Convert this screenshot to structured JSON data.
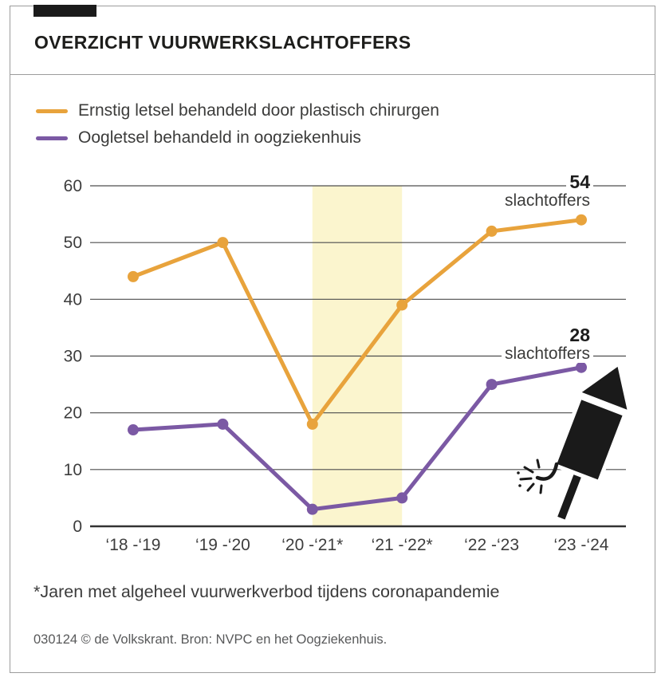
{
  "header": {
    "title": "OVERZICHT VUURWERKSLACHTOFFERS"
  },
  "legend": [
    {
      "label": "Ernstig letsel behandeld door plastisch chirurgen",
      "color": "#E8A33C"
    },
    {
      "label": "Oogletsel behandeld in oogziekenhuis",
      "color": "#7B59A4"
    }
  ],
  "chart_data": {
    "type": "line",
    "categories": [
      "‘18 -‘19",
      "‘19 -‘20",
      "‘20 -‘21*",
      "‘21 -‘22*",
      "‘22 -‘23",
      "‘23 -‘24"
    ],
    "series": [
      {
        "name": "Ernstig letsel behandeld door plastisch chirurgen",
        "color": "#E8A33C",
        "values": [
          44,
          50,
          18,
          39,
          52,
          54
        ]
      },
      {
        "name": "Oogletsel behandeld in oogziekenhuis",
        "color": "#7B59A4",
        "values": [
          17,
          18,
          3,
          5,
          25,
          28
        ]
      }
    ],
    "ylim": [
      0,
      60
    ],
    "yticks": [
      0,
      10,
      20,
      30,
      40,
      50,
      60
    ],
    "grid": true,
    "legend_position": "top-left",
    "highlight_band": {
      "from_category_index": 2,
      "to_category_index": 3,
      "color": "#FBF5CE"
    },
    "annotations": [
      {
        "value": "54",
        "label": "slachtoffers",
        "series": "Ernstig letsel behandeld door plastisch chirurgen"
      },
      {
        "value": "28",
        "label": "slachtoffers",
        "series": "Oogletsel behandeld in oogziekenhuis"
      }
    ],
    "colors": {
      "gridline": "#4d4d4d",
      "baseline": "#333333",
      "axis_text": "#3d3d3d"
    }
  },
  "footnote": "*Jaren met algeheel vuurwerkverbod tijdens coronapandemie",
  "source": "030124 © de Volkskrant. Bron: NVPC en het Oogziekenhuis."
}
